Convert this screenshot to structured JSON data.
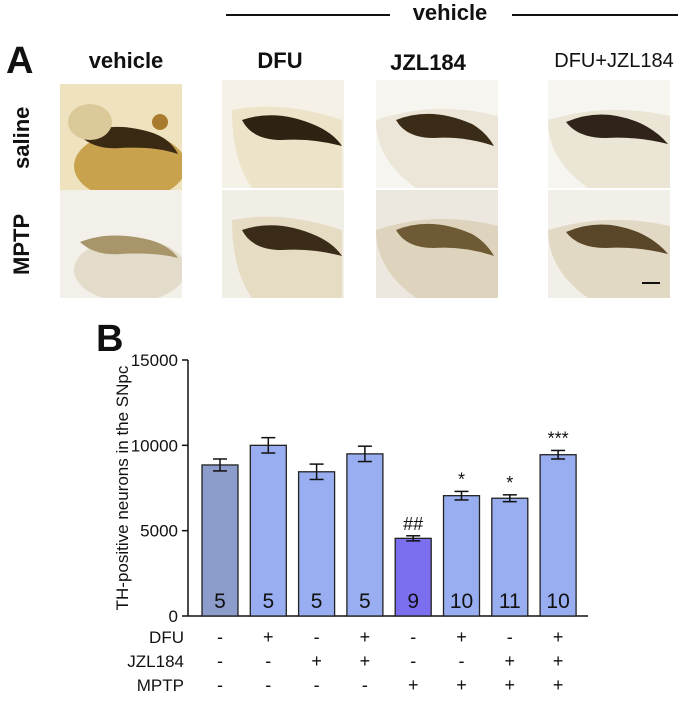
{
  "panel_a": {
    "letter": "A",
    "group_header": "vehicle",
    "column_headers": [
      "vehicle",
      "DFU",
      "JZL184",
      "DFU+JZL184"
    ],
    "row_headers": [
      "saline",
      "MPTP"
    ]
  },
  "panel_b": {
    "letter": "B"
  },
  "chart_data": {
    "type": "bar",
    "ylabel": "TH-positive neurons in the SNpc",
    "ylim": [
      0,
      15000
    ],
    "yticks": [
      0,
      5000,
      10000,
      15000
    ],
    "values": [
      8850,
      10000,
      8450,
      9500,
      4550,
      7050,
      6900,
      9450
    ],
    "errors": [
      350,
      450,
      450,
      450,
      150,
      250,
      200,
      250
    ],
    "n_labels": [
      "5",
      "5",
      "5",
      "5",
      "9",
      "10",
      "11",
      "10"
    ],
    "significance": [
      "",
      "",
      "",
      "",
      "##",
      "*",
      "*",
      "***"
    ],
    "bar_colors": [
      "#8c9ccb",
      "#98aef0",
      "#98aef0",
      "#98aef0",
      "#7b6ff0",
      "#98aef0",
      "#98aef0",
      "#98aef0"
    ],
    "conditions": [
      {
        "name": "DFU",
        "signs": [
          "-",
          "+",
          "-",
          "+",
          "-",
          "+",
          "-",
          "+"
        ]
      },
      {
        "name": "JZL184",
        "signs": [
          "-",
          "-",
          "+",
          "+",
          "-",
          "-",
          "+",
          "+"
        ]
      },
      {
        "name": "MPTP",
        "signs": [
          "-",
          "-",
          "-",
          "-",
          "+",
          "+",
          "+",
          "+"
        ]
      }
    ]
  }
}
